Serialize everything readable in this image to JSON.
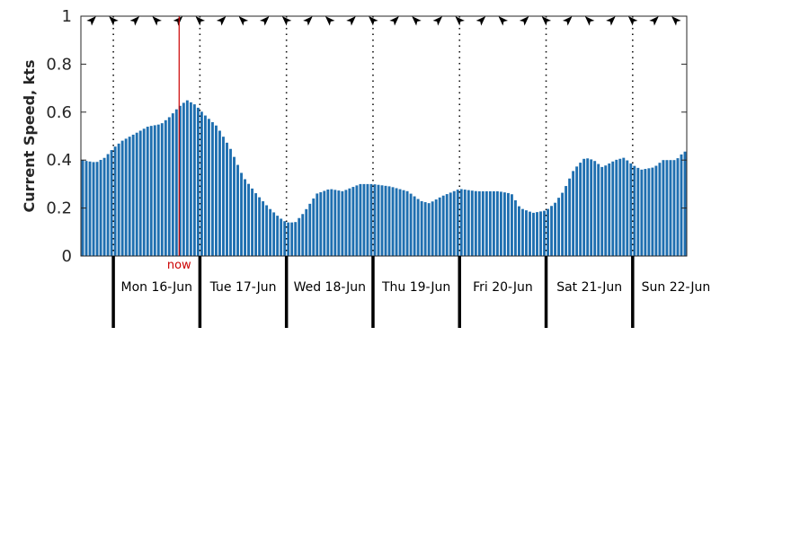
{
  "chart_data": {
    "type": "bar",
    "title": "",
    "xlabel": "",
    "ylabel": "Current Speed, kts",
    "ylim": [
      0,
      1
    ],
    "yticks": [
      "0",
      "0.2",
      "0.4",
      "0.6",
      "0.8",
      "1"
    ],
    "grid": false,
    "x_range_days": [
      -0.375,
      6.625
    ],
    "day_boundaries": [
      0,
      1,
      2,
      3,
      4,
      5,
      6
    ],
    "days": [
      "Mon 16-Jun",
      "Tue 17-Jun",
      "Wed 18-Jun",
      "Thu 19-Jun",
      "Fri 20-Jun",
      "Sat 21-Jun",
      "Sun 22-Jun"
    ],
    "now_marker": {
      "label": "now",
      "day_offset": 0.76
    },
    "bar_color": "#1f6fb0",
    "now_color": "#cc0000",
    "direction_arrows": "current direction arrows along top edge",
    "speed_profile": [
      [
        -0.375,
        0.4
      ],
      [
        -0.2,
        0.39
      ],
      [
        -0.1,
        0.41
      ],
      [
        0.0,
        0.45
      ],
      [
        0.1,
        0.48
      ],
      [
        0.25,
        0.51
      ],
      [
        0.4,
        0.54
      ],
      [
        0.55,
        0.55
      ],
      [
        0.65,
        0.58
      ],
      [
        0.75,
        0.62
      ],
      [
        0.85,
        0.65
      ],
      [
        0.95,
        0.63
      ],
      [
        1.05,
        0.59
      ],
      [
        1.2,
        0.54
      ],
      [
        1.35,
        0.45
      ],
      [
        1.5,
        0.33
      ],
      [
        1.65,
        0.26
      ],
      [
        1.8,
        0.2
      ],
      [
        1.92,
        0.16
      ],
      [
        2.0,
        0.14
      ],
      [
        2.1,
        0.14
      ],
      [
        2.2,
        0.18
      ],
      [
        2.35,
        0.26
      ],
      [
        2.5,
        0.28
      ],
      [
        2.65,
        0.27
      ],
      [
        2.85,
        0.3
      ],
      [
        3.0,
        0.3
      ],
      [
        3.2,
        0.29
      ],
      [
        3.4,
        0.27
      ],
      [
        3.55,
        0.23
      ],
      [
        3.65,
        0.22
      ],
      [
        3.8,
        0.25
      ],
      [
        4.0,
        0.28
      ],
      [
        4.2,
        0.27
      ],
      [
        4.45,
        0.27
      ],
      [
        4.6,
        0.26
      ],
      [
        4.7,
        0.2
      ],
      [
        4.85,
        0.18
      ],
      [
        5.0,
        0.19
      ],
      [
        5.1,
        0.22
      ],
      [
        5.2,
        0.27
      ],
      [
        5.32,
        0.36
      ],
      [
        5.45,
        0.41
      ],
      [
        5.55,
        0.4
      ],
      [
        5.65,
        0.37
      ],
      [
        5.8,
        0.4
      ],
      [
        5.9,
        0.41
      ],
      [
        6.0,
        0.38
      ],
      [
        6.1,
        0.36
      ],
      [
        6.25,
        0.37
      ],
      [
        6.35,
        0.4
      ],
      [
        6.5,
        0.4
      ],
      [
        6.58,
        0.43
      ],
      [
        6.625,
        0.44
      ]
    ]
  }
}
